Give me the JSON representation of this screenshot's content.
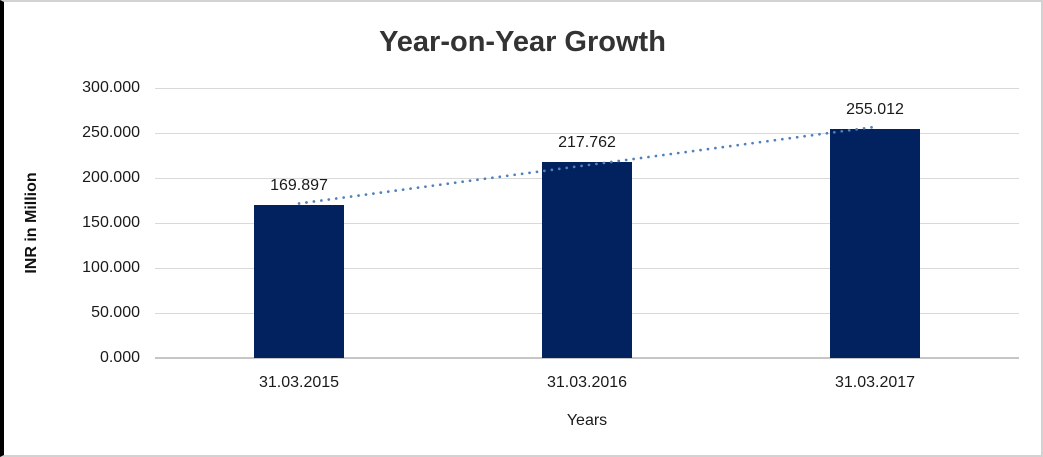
{
  "chart_data": {
    "type": "bar",
    "title": "Year-on-Year Growth",
    "xlabel": "Years",
    "ylabel": "INR in Million",
    "categories": [
      "31.03.2015",
      "31.03.2016",
      "31.03.2017"
    ],
    "values": [
      169.897,
      217.762,
      255.012
    ],
    "value_labels": [
      "169.897",
      "217.762",
      "255.012"
    ],
    "ylim": [
      0,
      300
    ],
    "ytick_values": [
      0,
      50,
      100,
      150,
      200,
      250,
      300
    ],
    "ytick_labels": [
      "0.000",
      "50.000",
      "100.000",
      "150.000",
      "200.000",
      "250.000",
      "300.000"
    ],
    "grid": true,
    "legend_position": "none",
    "trendline": {
      "type": "linear",
      "style": "dotted"
    },
    "colors": {
      "bar": "#02225f",
      "trendline": "#4f81bd",
      "gridline": "#d9d9d9",
      "title_text": "#333333",
      "label_text": "#1a1a1a",
      "frame_border": "#d2d2d2",
      "frame_left_border": "#000000"
    }
  }
}
